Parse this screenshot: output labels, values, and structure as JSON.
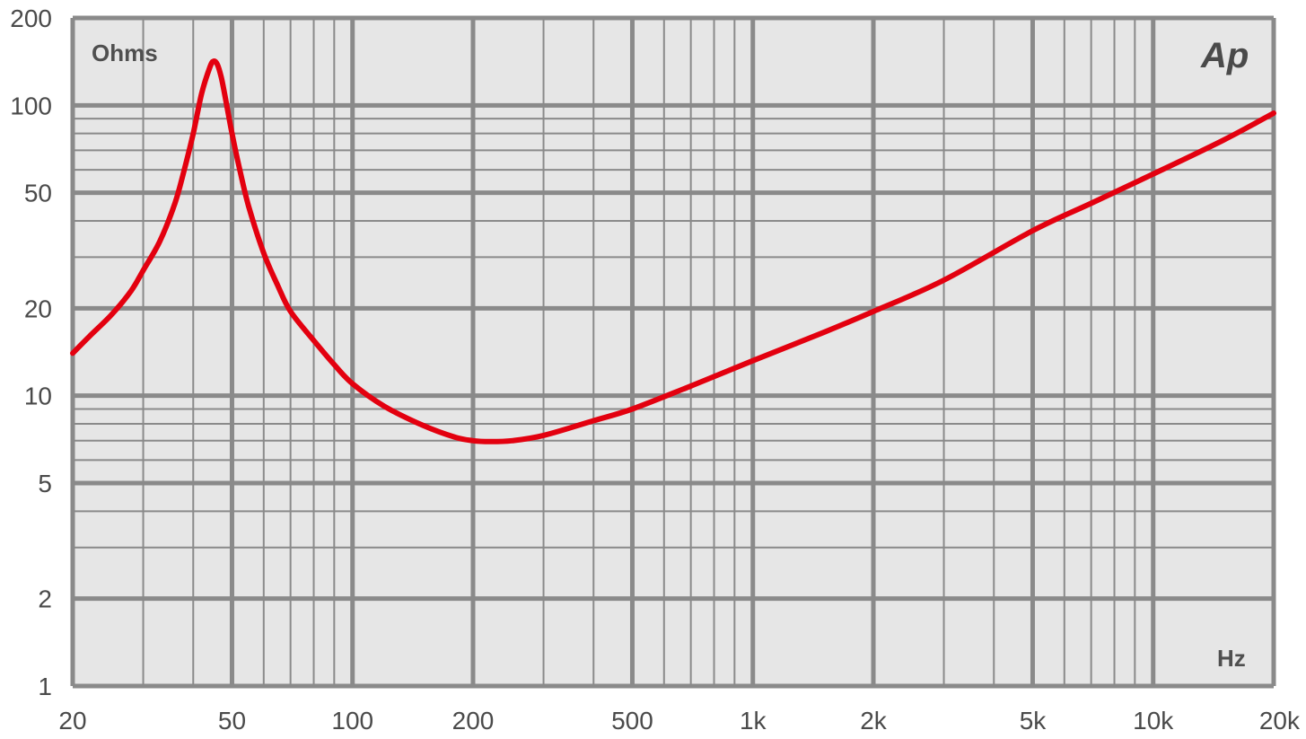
{
  "chart_data": {
    "type": "line",
    "xscale": "log",
    "yscale": "log",
    "xlim": [
      20,
      20000
    ],
    "ylim": [
      1,
      200
    ],
    "x_ticks": [
      20,
      50,
      100,
      200,
      500,
      1000,
      2000,
      5000,
      10000,
      20000
    ],
    "x_tick_labels": [
      "20",
      "50",
      "100",
      "200",
      "500",
      "1k",
      "2k",
      "5k",
      "10k",
      "20k"
    ],
    "y_ticks": [
      1,
      2,
      5,
      10,
      20,
      50,
      100,
      200
    ],
    "y_tick_labels": [
      "1",
      "2",
      "5",
      "10",
      "20",
      "50",
      "100",
      "200"
    ],
    "xlabel": "Hz",
    "ylabel": "Ohms",
    "logo_text": "Ap",
    "grid": true,
    "colors": {
      "background": "#e6e6e6",
      "grid": "#8a8a8a",
      "line": "#e3000f"
    },
    "series": [
      {
        "x": [
          20,
          22,
          25,
          28,
          30,
          33,
          36,
          38,
          40,
          42,
          44,
          45,
          46,
          47,
          48,
          50,
          52,
          55,
          60,
          65,
          70,
          80,
          90,
          100,
          120,
          150,
          180,
          200,
          220,
          250,
          300,
          400,
          500,
          700,
          1000,
          1500,
          2000,
          3000,
          5000,
          7000,
          10000,
          15000,
          20000
        ],
        "values": [
          14,
          16,
          19,
          23,
          27,
          34,
          46,
          60,
          80,
          110,
          135,
          142,
          138,
          125,
          108,
          80,
          62,
          45,
          31,
          24,
          19.5,
          15.5,
          12.8,
          11,
          9.2,
          7.9,
          7.2,
          7.0,
          6.95,
          7.0,
          7.3,
          8.2,
          9.0,
          10.8,
          13.2,
          16.5,
          19.5,
          25,
          37,
          46,
          58,
          76,
          94
        ]
      }
    ]
  }
}
